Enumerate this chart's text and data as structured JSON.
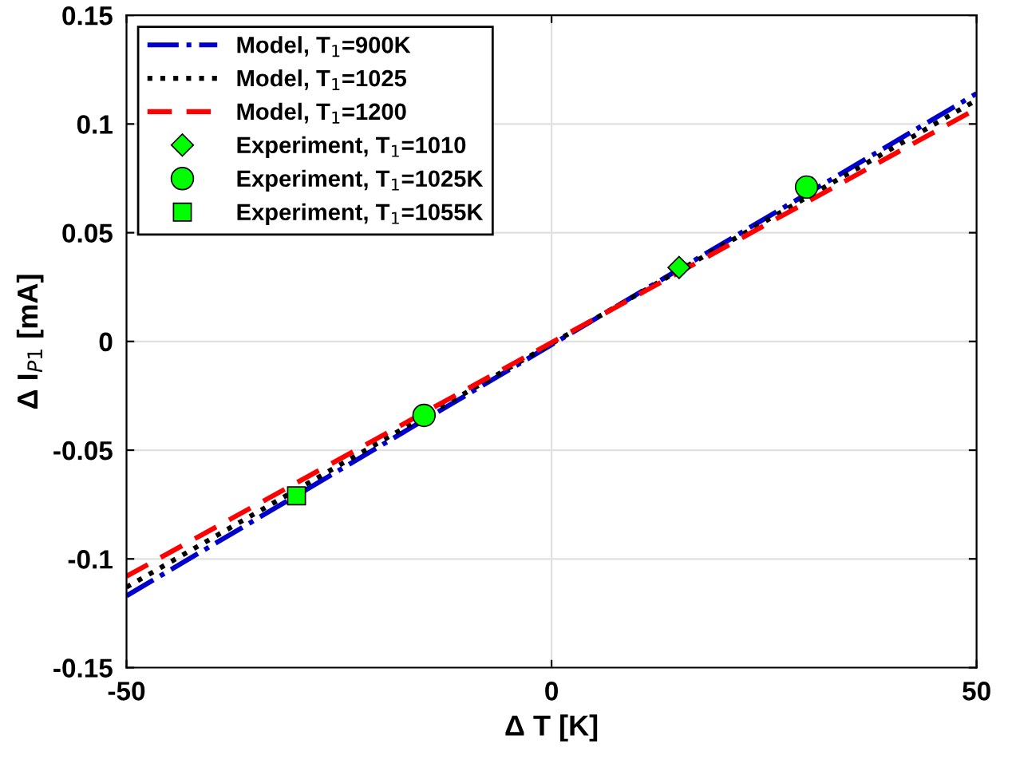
{
  "chart_data": {
    "type": "line",
    "xlabel": "Δ T [K]",
    "ylabel": "Δ I$_{P1}$ [mA]",
    "xlim": [
      -50,
      50
    ],
    "ylim": [
      -0.15,
      0.15
    ],
    "xticks": [
      -50,
      0,
      50
    ],
    "yticks": [
      -0.15,
      -0.1,
      -0.05,
      0,
      0.05,
      0.1,
      0.15
    ],
    "grid": true,
    "legend": "top left",
    "series": [
      {
        "name": "Model, T$_{1}$=900K",
        "color": "#0000cc",
        "line_style": "dashdot",
        "x": [
          -50,
          50
        ],
        "values": [
          -0.117,
          0.114
        ]
      },
      {
        "name": "Model, T$_{1}$=1025",
        "color": "#000000",
        "line_style": "dotted",
        "x": [
          -50,
          50
        ],
        "values": [
          -0.113,
          0.111
        ]
      },
      {
        "name": "Model, T$_{1}$=1200",
        "color": "#ff0000",
        "line_style": "dashed",
        "x": [
          -50,
          50
        ],
        "values": [
          -0.108,
          0.107
        ]
      },
      {
        "name": "Experiment, T$_{1}$=1010",
        "type": "scatter",
        "color": "#00ff00",
        "marker": "diamond",
        "x": [
          15
        ],
        "values": [
          0.034
        ]
      },
      {
        "name": "Experiment, T$_{1}$=1025K",
        "type": "scatter",
        "color": "#00ff00",
        "marker": "circle",
        "x": [
          -15,
          30
        ],
        "values": [
          -0.034,
          0.071
        ]
      },
      {
        "name": "Experiment, T$_{1}$=1055K",
        "type": "scatter",
        "color": "#00ff00",
        "marker": "square",
        "x": [
          -30
        ],
        "values": [
          -0.071
        ]
      }
    ]
  }
}
